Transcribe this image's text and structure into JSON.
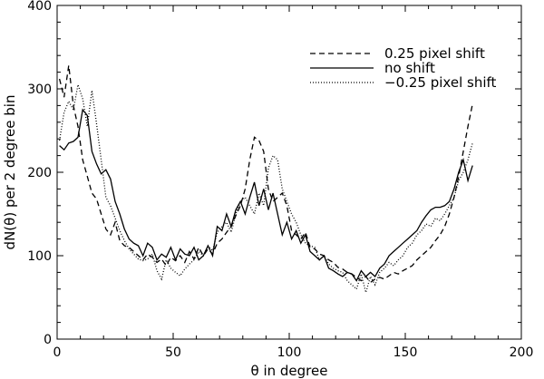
{
  "chart_data": {
    "type": "line",
    "xlabel": "θ in degree",
    "ylabel": "dN(θ) per 2 degree bin",
    "xlim": [
      0,
      200
    ],
    "ylim": [
      0,
      400
    ],
    "xticks": [
      0,
      50,
      100,
      150,
      200
    ],
    "yticks": [
      0,
      100,
      200,
      300,
      400
    ],
    "grid": false,
    "legend_position": "top-right",
    "x": [
      1,
      3,
      5,
      7,
      9,
      11,
      13,
      15,
      17,
      19,
      21,
      23,
      25,
      27,
      29,
      31,
      33,
      35,
      37,
      39,
      41,
      43,
      45,
      47,
      49,
      51,
      53,
      55,
      57,
      59,
      61,
      63,
      65,
      67,
      69,
      71,
      73,
      75,
      77,
      79,
      81,
      83,
      85,
      87,
      89,
      91,
      93,
      95,
      97,
      99,
      101,
      103,
      105,
      107,
      109,
      111,
      113,
      115,
      117,
      119,
      121,
      123,
      125,
      127,
      129,
      131,
      133,
      135,
      137,
      139,
      141,
      143,
      145,
      147,
      149,
      151,
      153,
      155,
      157,
      159,
      161,
      163,
      165,
      167,
      169,
      171,
      173,
      175,
      177,
      179
    ],
    "series": [
      {
        "name": "0.25 pixel shift",
        "dash": "dashed",
        "values": [
          312,
          290,
          328,
          280,
          255,
          215,
          195,
          175,
          168,
          150,
          132,
          125,
          140,
          118,
          112,
          110,
          105,
          100,
          95,
          102,
          98,
          92,
          96,
          88,
          98,
          94,
          100,
          92,
          105,
          96,
          110,
          100,
          108,
          102,
          115,
          120,
          128,
          135,
          148,
          160,
          180,
          215,
          242,
          238,
          225,
          180,
          165,
          170,
          175,
          160,
          130,
          125,
          120,
          128,
          110,
          108,
          102,
          100,
          95,
          92,
          86,
          84,
          80,
          78,
          74,
          70,
          75,
          68,
          72,
          74,
          72,
          76,
          80,
          78,
          82,
          85,
          88,
          95,
          100,
          105,
          110,
          118,
          125,
          135,
          150,
          170,
          195,
          225,
          255,
          282
        ]
      },
      {
        "name": "no shift",
        "dash": "solid",
        "values": [
          232,
          227,
          235,
          237,
          242,
          275,
          268,
          225,
          210,
          198,
          203,
          192,
          165,
          150,
          132,
          120,
          115,
          112,
          100,
          115,
          110,
          95,
          102,
          98,
          110,
          95,
          108,
          102,
          100,
          110,
          95,
          100,
          112,
          100,
          135,
          130,
          150,
          135,
          155,
          165,
          150,
          170,
          188,
          160,
          180,
          155,
          175,
          150,
          125,
          140,
          120,
          130,
          115,
          125,
          105,
          100,
          95,
          100,
          85,
          82,
          78,
          75,
          80,
          78,
          70,
          82,
          75,
          80,
          75,
          85,
          90,
          100,
          105,
          110,
          115,
          120,
          125,
          130,
          140,
          148,
          155,
          158,
          158,
          160,
          165,
          180,
          200,
          215,
          190,
          208
        ]
      },
      {
        "name": "−0.25 pixel shift",
        "dash": "dotted",
        "values": [
          238,
          272,
          285,
          275,
          305,
          288,
          255,
          298,
          258,
          215,
          170,
          160,
          145,
          130,
          118,
          108,
          102,
          96,
          94,
          96,
          102,
          82,
          72,
          95,
          85,
          80,
          76,
          84,
          90,
          95,
          105,
          100,
          112,
          106,
          128,
          135,
          140,
          128,
          150,
          165,
          170,
          160,
          150,
          175,
          160,
          205,
          220,
          215,
          180,
          165,
          150,
          140,
          125,
          115,
          112,
          110,
          95,
          100,
          90,
          85,
          82,
          80,
          70,
          65,
          60,
          78,
          56,
          75,
          65,
          80,
          85,
          92,
          88,
          95,
          100,
          110,
          115,
          125,
          130,
          138,
          135,
          145,
          142,
          150,
          160,
          170,
          190,
          200,
          215,
          235
        ]
      }
    ]
  },
  "colors": {
    "line": "#000000",
    "axis": "#000000",
    "background": "#ffffff"
  }
}
